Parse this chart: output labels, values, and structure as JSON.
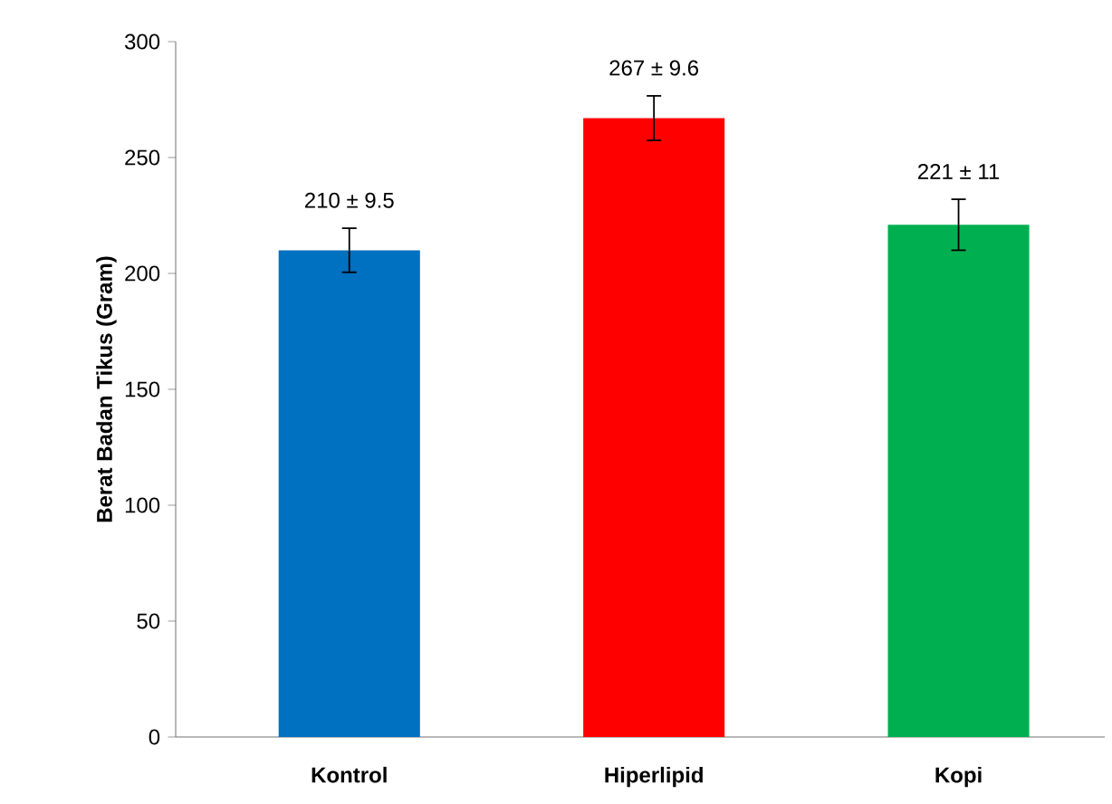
{
  "chart_data": {
    "type": "bar",
    "ylabel": "Berat Badan Tikus (Gram)",
    "categories": [
      "Kontrol",
      "Hiperlipid",
      "Kopi"
    ],
    "values": [
      210,
      267,
      221
    ],
    "errors": [
      9.5,
      9.6,
      11
    ],
    "value_labels": [
      "210 ± 9.5",
      "267 ± 9.6",
      "221 ± 11"
    ],
    "colors": [
      "#0070c0",
      "#ff0000",
      "#00b050"
    ],
    "ylim": [
      0,
      300
    ],
    "yticks": [
      0,
      50,
      100,
      150,
      200,
      250,
      300
    ],
    "grid": false
  }
}
